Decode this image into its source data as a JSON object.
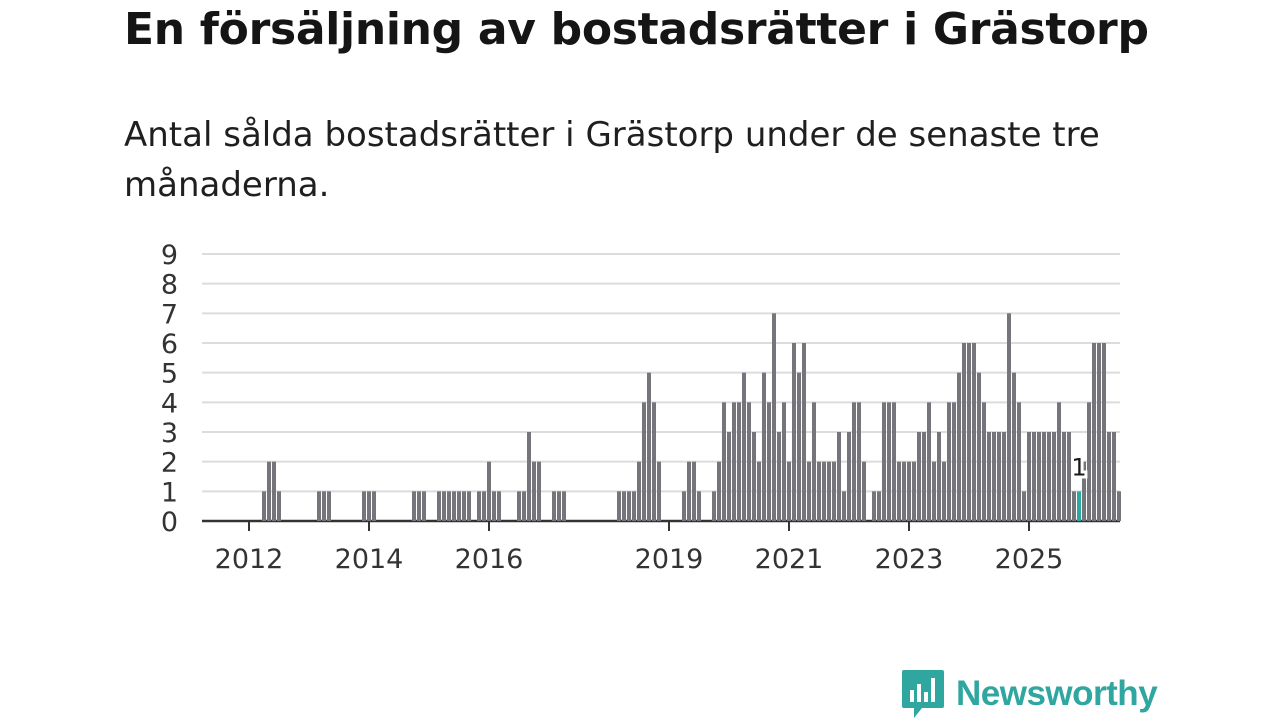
{
  "header": {
    "title": "En försäljning av bostadsrätter i Grästorp",
    "subtitle": "Antal sålda bostadsrätter i Grästorp under de senaste tre månaderna."
  },
  "brand": {
    "name": "Newsworthy",
    "color": "#2fa6a0"
  },
  "colors": {
    "bar": "#75757b",
    "highlight": "#2aa8a3",
    "grid": "#dcdcdc",
    "axis": "#333333"
  },
  "chart_data": {
    "type": "bar",
    "title": "En försäljning av bostadsrätter i Grästorp",
    "xlabel": "",
    "ylabel": "",
    "ylim": [
      0,
      9
    ],
    "yticks": [
      "0",
      "1",
      "2",
      "3",
      "4",
      "5",
      "6",
      "7",
      "8",
      "9"
    ],
    "x_start": "2011-05",
    "xtick_labels": [
      {
        "label": "2012",
        "index": 8
      },
      {
        "label": "2014",
        "index": 32
      },
      {
        "label": "2016",
        "index": 56
      },
      {
        "label": "2019",
        "index": 92
      },
      {
        "label": "2021",
        "index": 116
      },
      {
        "label": "2023",
        "index": 140
      },
      {
        "label": "2025",
        "index": 164
      }
    ],
    "values": [
      0,
      0,
      0,
      0,
      0,
      0,
      0,
      0,
      0,
      0,
      0,
      1,
      2,
      2,
      1,
      0,
      0,
      0,
      0,
      0,
      0,
      0,
      1,
      1,
      1,
      0,
      0,
      0,
      0,
      0,
      0,
      1,
      1,
      1,
      0,
      0,
      0,
      0,
      0,
      0,
      0,
      1,
      1,
      1,
      0,
      0,
      1,
      1,
      1,
      1,
      1,
      1,
      1,
      0,
      1,
      1,
      2,
      1,
      1,
      0,
      0,
      0,
      1,
      1,
      3,
      2,
      2,
      0,
      0,
      1,
      1,
      1,
      0,
      0,
      0,
      0,
      0,
      0,
      0,
      0,
      0,
      0,
      1,
      1,
      1,
      1,
      2,
      4,
      5,
      4,
      2,
      0,
      0,
      0,
      0,
      1,
      2,
      2,
      1,
      0,
      0,
      1,
      2,
      4,
      3,
      4,
      4,
      5,
      4,
      3,
      2,
      5,
      4,
      7,
      3,
      4,
      2,
      6,
      5,
      6,
      2,
      4,
      2,
      2,
      2,
      2,
      3,
      1,
      3,
      4,
      4,
      2,
      0,
      1,
      1,
      4,
      4,
      4,
      2,
      2,
      2,
      2,
      3,
      3,
      4,
      2,
      3,
      2,
      4,
      4,
      5,
      6,
      6,
      6,
      5,
      4,
      3,
      3,
      3,
      3,
      7,
      5,
      4,
      1,
      3,
      3,
      3,
      3,
      3,
      3,
      4,
      3,
      3,
      1,
      1,
      2,
      4,
      6,
      6,
      6,
      3,
      3,
      1
    ],
    "highlight_index": 174,
    "highlight_label": "1"
  }
}
